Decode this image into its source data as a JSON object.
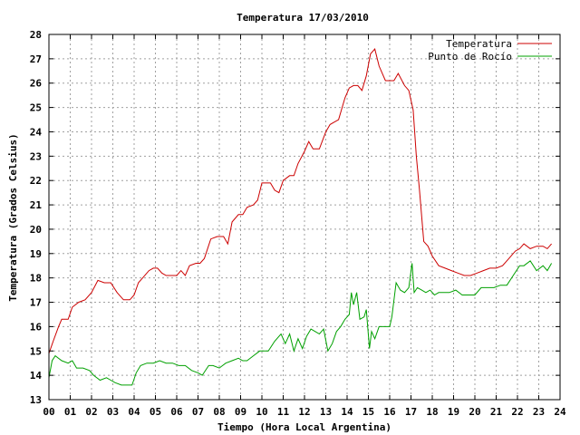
{
  "chart_data": {
    "type": "line",
    "title": "Temperatura 17/03/2010",
    "xlabel": "Tiempo (Hora Local Argentina)",
    "ylabel": "Temperatura (Grados Celsius)",
    "xlim": [
      0,
      24
    ],
    "ylim": [
      13,
      28
    ],
    "x_ticks": [
      "00",
      "01",
      "02",
      "03",
      "04",
      "05",
      "06",
      "07",
      "08",
      "09",
      "10",
      "11",
      "12",
      "13",
      "14",
      "15",
      "16",
      "17",
      "18",
      "19",
      "20",
      "21",
      "22",
      "23",
      "24"
    ],
    "y_ticks": [
      "13",
      "14",
      "15",
      "16",
      "17",
      "18",
      "19",
      "20",
      "21",
      "22",
      "23",
      "24",
      "25",
      "26",
      "27",
      "28"
    ],
    "grid": true,
    "legend_position": "top-right",
    "series": [
      {
        "name": "Temperatura",
        "color": "#cc0000",
        "x": [
          0,
          0.2,
          0.45,
          0.6,
          0.9,
          1.1,
          1.4,
          1.7,
          2.0,
          2.3,
          2.6,
          2.9,
          3.2,
          3.5,
          3.8,
          4.0,
          4.2,
          4.4,
          4.7,
          4.9,
          5.1,
          5.3,
          5.5,
          5.8,
          6.0,
          6.2,
          6.4,
          6.6,
          6.9,
          7.1,
          7.3,
          7.6,
          7.9,
          8.2,
          8.4,
          8.6,
          8.9,
          9.1,
          9.3,
          9.6,
          9.8,
          10.0,
          10.2,
          10.4,
          10.6,
          10.8,
          11.0,
          11.3,
          11.5,
          11.7,
          12.0,
          12.2,
          12.4,
          12.7,
          13.0,
          13.2,
          13.4,
          13.6,
          13.9,
          14.1,
          14.3,
          14.5,
          14.7,
          14.9,
          15.1,
          15.3,
          15.5,
          15.8,
          16.0,
          16.2,
          16.4,
          16.7,
          16.9,
          17.1,
          17.25,
          17.4,
          17.6,
          17.8,
          18.0,
          18.3,
          18.6,
          18.9,
          19.2,
          19.5,
          19.8,
          20.1,
          20.4,
          20.7,
          21.0,
          21.3,
          21.6,
          21.9,
          22.1,
          22.3,
          22.6,
          22.9,
          23.2,
          23.4,
          23.6
        ],
        "values": [
          14.9,
          15.4,
          16.0,
          16.3,
          16.3,
          16.8,
          17.0,
          17.1,
          17.4,
          17.9,
          17.8,
          17.8,
          17.4,
          17.1,
          17.1,
          17.3,
          17.8,
          18.0,
          18.3,
          18.4,
          18.4,
          18.2,
          18.1,
          18.1,
          18.1,
          18.3,
          18.1,
          18.5,
          18.6,
          18.6,
          18.8,
          19.6,
          19.7,
          19.7,
          19.4,
          20.3,
          20.6,
          20.6,
          20.9,
          21.0,
          21.2,
          21.9,
          21.9,
          21.9,
          21.6,
          21.5,
          22.0,
          22.2,
          22.2,
          22.7,
          23.2,
          23.6,
          23.3,
          23.3,
          24.0,
          24.3,
          24.4,
          24.5,
          25.4,
          25.8,
          25.9,
          25.9,
          25.7,
          26.3,
          27.2,
          27.4,
          26.7,
          26.1,
          26.1,
          26.1,
          26.4,
          25.9,
          25.7,
          24.9,
          23.0,
          21.6,
          19.5,
          19.3,
          18.9,
          18.5,
          18.4,
          18.3,
          18.2,
          18.1,
          18.1,
          18.2,
          18.3,
          18.4,
          18.4,
          18.5,
          18.8,
          19.1,
          19.2,
          19.4,
          19.2,
          19.3,
          19.3,
          19.2,
          19.4
        ]
      },
      {
        "name": "Punto de Rocío",
        "color": "#00a000",
        "x": [
          0,
          0.15,
          0.3,
          0.6,
          0.9,
          1.1,
          1.3,
          1.6,
          1.9,
          2.1,
          2.4,
          2.7,
          2.9,
          3.1,
          3.4,
          3.7,
          3.9,
          4.1,
          4.3,
          4.6,
          4.9,
          5.2,
          5.5,
          5.8,
          6.1,
          6.4,
          6.7,
          7.0,
          7.2,
          7.5,
          7.7,
          8.0,
          8.3,
          8.6,
          8.9,
          9.1,
          9.3,
          9.6,
          9.9,
          10.1,
          10.3,
          10.6,
          10.9,
          11.1,
          11.3,
          11.5,
          11.7,
          11.9,
          12.1,
          12.3,
          12.5,
          12.7,
          12.9,
          13.1,
          13.3,
          13.5,
          13.7,
          13.9,
          14.0,
          14.1,
          14.2,
          14.3,
          14.45,
          14.6,
          14.8,
          14.9,
          15.05,
          15.15,
          15.3,
          15.5,
          15.7,
          15.9,
          16.0,
          16.1,
          16.3,
          16.5,
          16.7,
          16.9,
          17.05,
          17.15,
          17.3,
          17.5,
          17.7,
          17.9,
          18.1,
          18.3,
          18.5,
          18.8,
          19.1,
          19.4,
          19.7,
          20.0,
          20.3,
          20.6,
          20.9,
          21.2,
          21.5,
          21.8,
          22.1,
          22.3,
          22.6,
          22.9,
          23.2,
          23.4,
          23.6
        ],
        "values": [
          13.9,
          14.6,
          14.8,
          14.6,
          14.5,
          14.6,
          14.3,
          14.3,
          14.2,
          14.0,
          13.8,
          13.9,
          13.8,
          13.7,
          13.6,
          13.6,
          13.6,
          14.1,
          14.4,
          14.5,
          14.5,
          14.6,
          14.5,
          14.5,
          14.4,
          14.4,
          14.2,
          14.1,
          14.0,
          14.4,
          14.4,
          14.3,
          14.5,
          14.6,
          14.7,
          14.6,
          14.6,
          14.8,
          15.0,
          15.0,
          15.0,
          15.4,
          15.7,
          15.3,
          15.7,
          15.0,
          15.5,
          15.1,
          15.6,
          15.9,
          15.8,
          15.7,
          15.9,
          15.0,
          15.3,
          15.8,
          16.0,
          16.3,
          16.4,
          16.5,
          17.4,
          16.9,
          17.4,
          16.3,
          16.4,
          16.7,
          15.1,
          15.8,
          15.5,
          16.0,
          16.0,
          16.0,
          16.0,
          16.4,
          17.8,
          17.5,
          17.4,
          17.6,
          18.6,
          17.4,
          17.6,
          17.5,
          17.4,
          17.5,
          17.3,
          17.4,
          17.4,
          17.4,
          17.5,
          17.3,
          17.3,
          17.3,
          17.6,
          17.6,
          17.6,
          17.7,
          17.7,
          18.1,
          18.5,
          18.5,
          18.7,
          18.3,
          18.5,
          18.3,
          18.6
        ]
      }
    ]
  }
}
